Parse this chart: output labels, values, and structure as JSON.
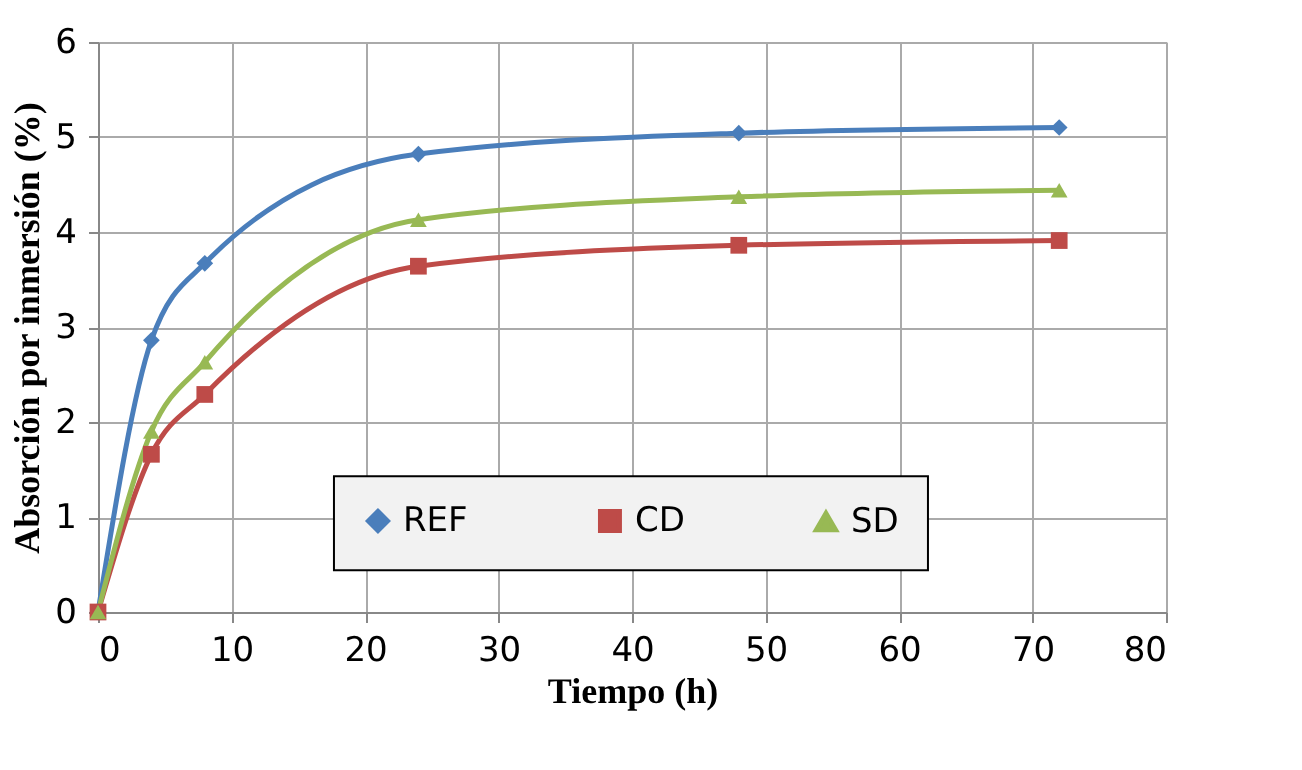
{
  "chart_data": {
    "type": "line",
    "xlabel": "Tiempo (h)",
    "ylabel": "Absorción por inmersión (%)",
    "x": [
      0,
      4,
      8,
      24,
      48,
      72
    ],
    "series": [
      {
        "name": "REF",
        "color": "#4a7ebb",
        "marker": "diamond",
        "values": [
          0,
          2.86,
          3.67,
          4.82,
          5.04,
          5.1
        ]
      },
      {
        "name": "CD",
        "color": "#be4b48",
        "marker": "square",
        "values": [
          0,
          1.66,
          2.29,
          3.64,
          3.86,
          3.91
        ]
      },
      {
        "name": "SD",
        "color": "#98b954",
        "marker": "triangle",
        "values": [
          0,
          1.9,
          2.63,
          4.13,
          4.37,
          4.44
        ]
      }
    ],
    "xlim": [
      0,
      80
    ],
    "xticks": [
      0,
      10,
      20,
      30,
      40,
      50,
      60,
      70,
      80
    ],
    "ylim": [
      0,
      6
    ],
    "yticks": [
      0,
      1,
      2,
      3,
      4,
      5,
      6
    ],
    "grid": true,
    "legend": "bottom right",
    "line_style": "solid"
  }
}
